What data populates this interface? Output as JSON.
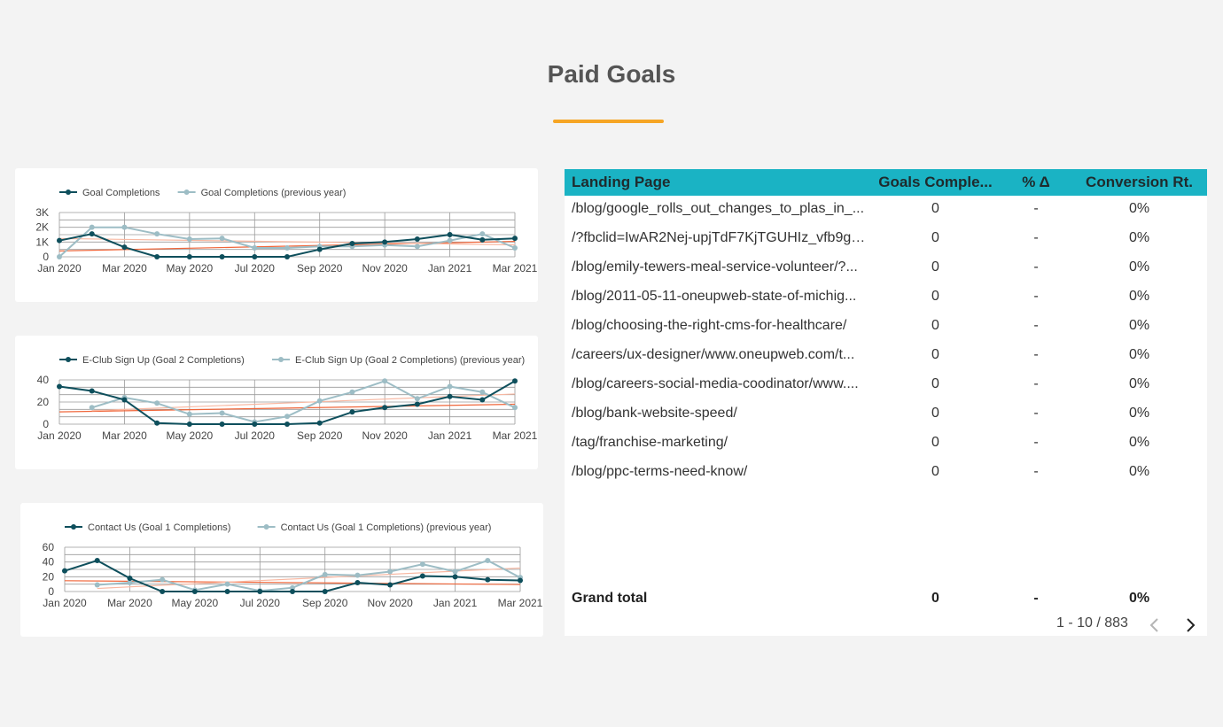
{
  "page": {
    "title": "Paid Goals",
    "accent_color": "#f6a524"
  },
  "charts": {
    "colors": {
      "current": "#0e4f5c",
      "previous": "#9dbdc5",
      "trend_current": "#f0663a",
      "trend_previous": "#f8b8a2"
    },
    "x_ticks": [
      "Jan 2020",
      "Mar 2020",
      "May 2020",
      "Jul 2020",
      "Sep 2020",
      "Nov 2020",
      "Jan 2021",
      "Mar 2021"
    ]
  },
  "chart_data": [
    {
      "type": "line",
      "x": [
        "Jan 2020",
        "Feb 2020",
        "Mar 2020",
        "Apr 2020",
        "May 2020",
        "Jun 2020",
        "Jul 2020",
        "Aug 2020",
        "Sep 2020",
        "Oct 2020",
        "Nov 2020",
        "Dec 2020",
        "Jan 2021",
        "Feb 2021",
        "Mar 2021"
      ],
      "y_ticks": [
        "0",
        "1K",
        "2K",
        "3K"
      ],
      "ylim": [
        0,
        3000
      ],
      "series": [
        {
          "name": "Goal Completions",
          "values": [
            1100,
            1550,
            650,
            0,
            0,
            0,
            0,
            0,
            500,
            900,
            1000,
            1200,
            1500,
            1150,
            1250
          ]
        },
        {
          "name": "Goal Completions (previous year)",
          "values": [
            0,
            2000,
            2000,
            1550,
            1200,
            1250,
            600,
            600,
            700,
            700,
            800,
            700,
            1100,
            1550,
            600
          ]
        }
      ],
      "legend": "top-left",
      "grid": true
    },
    {
      "type": "line",
      "x": [
        "Jan 2020",
        "Feb 2020",
        "Mar 2020",
        "Apr 2020",
        "May 2020",
        "Jun 2020",
        "Jul 2020",
        "Aug 2020",
        "Sep 2020",
        "Oct 2020",
        "Nov 2020",
        "Dec 2020",
        "Jan 2021",
        "Feb 2021",
        "Mar 2021"
      ],
      "y_ticks": [
        "0",
        "20",
        "40"
      ],
      "ylim": [
        0,
        40
      ],
      "series": [
        {
          "name": "E-Club Sign Up (Goal 2 Completions)",
          "values": [
            34,
            30,
            22,
            1,
            0,
            0,
            0,
            0,
            1,
            11,
            15,
            18,
            25,
            22,
            39
          ]
        },
        {
          "name": "E-Club Sign Up (Goal 2 Completions) (previous year)",
          "values": [
            null,
            15,
            24,
            19,
            9,
            10,
            2,
            7,
            21,
            29,
            39,
            23,
            34,
            29,
            15
          ]
        }
      ],
      "legend": "top-left",
      "grid": true
    },
    {
      "type": "line",
      "x": [
        "Jan 2020",
        "Feb 2020",
        "Mar 2020",
        "Apr 2020",
        "May 2020",
        "Jun 2020",
        "Jul 2020",
        "Aug 2020",
        "Sep 2020",
        "Oct 2020",
        "Nov 2020",
        "Dec 2020",
        "Jan 2021",
        "Feb 2021",
        "Mar 2021"
      ],
      "y_ticks": [
        "0",
        "20",
        "40",
        "60"
      ],
      "ylim": [
        0,
        60
      ],
      "series": [
        {
          "name": "Contact Us (Goal 1 Completions)",
          "values": [
            28,
            42,
            18,
            0,
            0,
            0,
            0,
            0,
            0,
            12,
            9,
            21,
            20,
            16,
            15
          ]
        },
        {
          "name": "Contact Us (Goal 1 Completions) (previous year)",
          "values": [
            null,
            9,
            12,
            16,
            2,
            10,
            1,
            5,
            23,
            22,
            27,
            37,
            27,
            42,
            19
          ]
        }
      ],
      "legend": "top-left",
      "grid": true
    }
  ],
  "table": {
    "headers": {
      "landing_page": "Landing Page",
      "goals": "Goals Comple...",
      "delta": "% Δ",
      "conversion": "Conversion Rt."
    },
    "rows": [
      {
        "page": "/blog/google_rolls_out_changes_to_plas_in_...",
        "goals": "0",
        "delta": "-",
        "conversion": "0%"
      },
      {
        "page": "/?fbclid=IwAR2Nej-upjTdF7KjTGUHIz_vfb9gb...",
        "goals": "0",
        "delta": "-",
        "conversion": "0%"
      },
      {
        "page": "/blog/emily-tewers-meal-service-volunteer/?...",
        "goals": "0",
        "delta": "-",
        "conversion": "0%"
      },
      {
        "page": "/blog/2011-05-11-oneupweb-state-of-michig...",
        "goals": "0",
        "delta": "-",
        "conversion": "0%"
      },
      {
        "page": "/blog/choosing-the-right-cms-for-healthcare/",
        "goals": "0",
        "delta": "-",
        "conversion": "0%"
      },
      {
        "page": "/careers/ux-designer/www.oneupweb.com/t...",
        "goals": "0",
        "delta": "-",
        "conversion": "0%"
      },
      {
        "page": "/blog/careers-social-media-coodinator/www....",
        "goals": "0",
        "delta": "-",
        "conversion": "0%"
      },
      {
        "page": "/blog/bank-website-speed/",
        "goals": "0",
        "delta": "-",
        "conversion": "0%"
      },
      {
        "page": "/tag/franchise-marketing/",
        "goals": "0",
        "delta": "-",
        "conversion": "0%"
      },
      {
        "page": "/blog/ppc-terms-need-know/",
        "goals": "0",
        "delta": "-",
        "conversion": "0%"
      }
    ],
    "grand_total": {
      "label": "Grand total",
      "goals": "0",
      "delta": "-",
      "conversion": "0%"
    },
    "pagination": {
      "range": "1 - 10 / 883",
      "prev_icon": "chevron-left-icon",
      "next_icon": "chevron-right-icon"
    },
    "header_color": "#1ab3c4"
  }
}
